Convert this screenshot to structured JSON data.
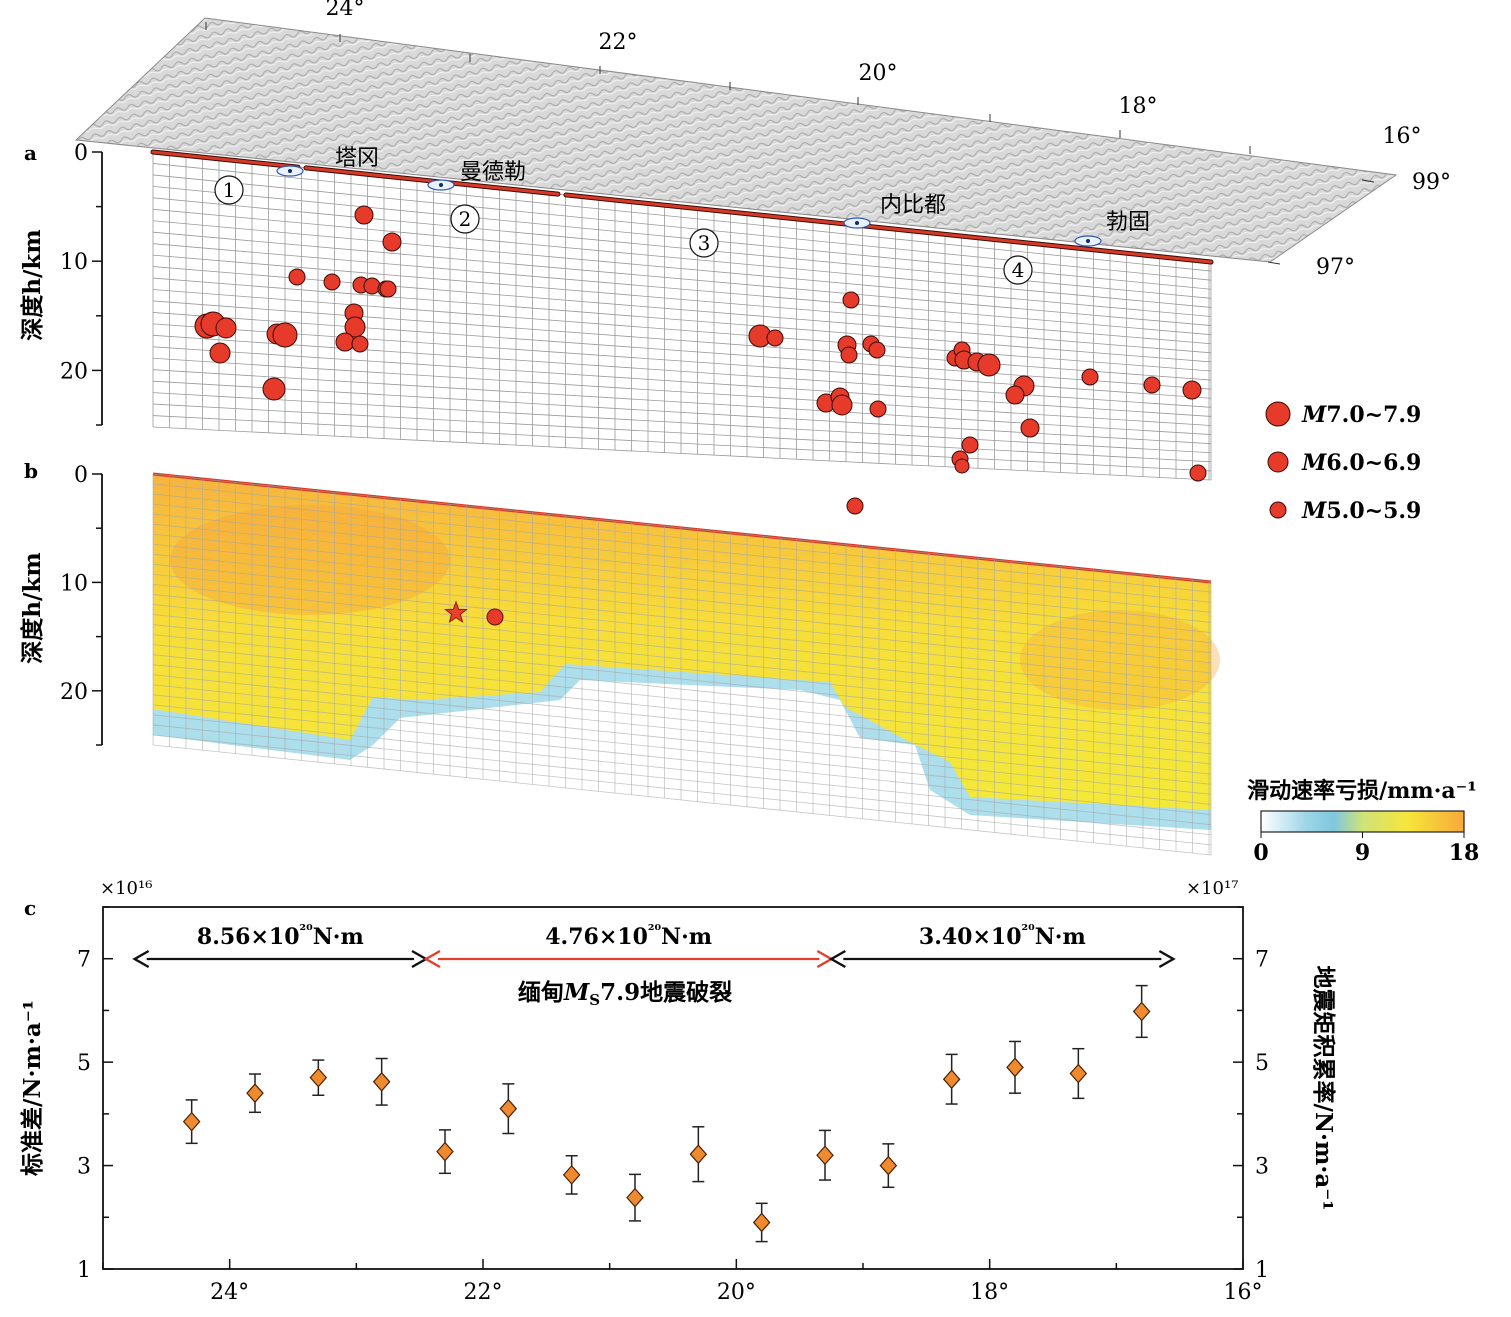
{
  "panels": {
    "a": "a",
    "b": "b",
    "c": "c",
    "depth_label": "深度h/km",
    "depth_ticks": [
      0,
      10,
      20
    ]
  },
  "map": {
    "lon_ticks": [
      "24°",
      "22°",
      "20°",
      "18°",
      "16°"
    ],
    "lat_ticks": [
      "99°",
      "97°"
    ]
  },
  "segments": [
    "①",
    "②",
    "③",
    "④"
  ],
  "towns": [
    "塔冈",
    "曼德勒",
    "内比都",
    "勃固"
  ],
  "legend": [
    {
      "label_m": "M",
      "label": "7.0~7.9"
    },
    {
      "label_m": "M",
      "label": "6.0~6.9"
    },
    {
      "label_m": "M",
      "label": "5.0~5.9"
    }
  ],
  "slip": {
    "colorbar_title": "滑动速率亏损/mm·a⁻¹",
    "colorbar_ticks": [
      "0",
      "9",
      "18"
    ],
    "colorbar_range": [
      0,
      18
    ]
  },
  "colors": {
    "quake": "#e63a2a",
    "trace": "#d63a26",
    "point": "#f08a2e",
    "arrow_red": "#e2402c"
  },
  "chart_data": {
    "type": "scatter",
    "x": [
      24.3,
      23.8,
      23.3,
      22.8,
      22.3,
      21.8,
      21.3,
      20.8,
      20.3,
      19.8,
      19.3,
      18.8,
      18.3,
      17.8,
      17.3,
      16.8
    ],
    "y": [
      3.85,
      4.4,
      4.7,
      4.62,
      3.27,
      4.1,
      2.82,
      2.38,
      3.22,
      1.9,
      3.2,
      3.0,
      4.67,
      4.9,
      4.78,
      5.98
    ],
    "y_err": [
      0.42,
      0.37,
      0.34,
      0.45,
      0.42,
      0.48,
      0.37,
      0.45,
      0.53,
      0.37,
      0.48,
      0.42,
      0.48,
      0.5,
      0.48,
      0.5
    ],
    "xlim": [
      25,
      16
    ],
    "ylim": [
      1,
      8
    ],
    "x_ticks": [
      "24°",
      "22°",
      "20°",
      "18°",
      "16°"
    ],
    "y_ticks": [
      "1",
      "3",
      "5",
      "7"
    ],
    "y2_ticks": [
      "1",
      "3",
      "5",
      "7"
    ],
    "ylabel": "标准差/N·m·a⁻¹",
    "ylabel_multiplier": "×10¹⁶",
    "y2label": "地震矩积累率/N·m·a⁻¹",
    "y2label_multiplier": "×10¹⁷",
    "moment_segments": [
      {
        "label": "8.56×10²⁰N·m",
        "from": 24.75,
        "to": 22.45,
        "color": "#111111"
      },
      {
        "label": "4.76×10²⁰N·m",
        "from": 22.45,
        "to": 19.25,
        "color": "#e2402c"
      },
      {
        "label": "3.40×10²⁰N·m",
        "from": 19.25,
        "to": 16.55,
        "color": "#111111"
      }
    ],
    "rupture_label": {
      "prefix": "缅甸",
      "M": "M",
      "sub": "S",
      "suffix": "7.9地震破裂"
    }
  }
}
